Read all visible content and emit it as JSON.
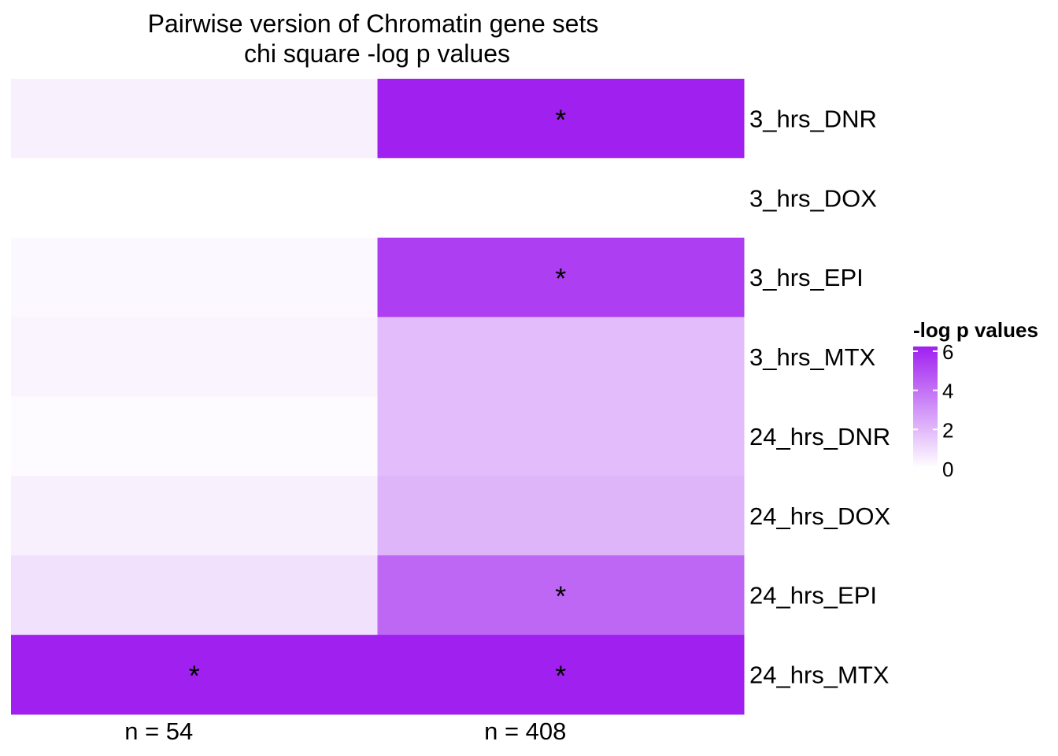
{
  "chart_data": {
    "type": "heatmap",
    "title": "Pairwise version of Chromatin gene sets",
    "subtitle": "chi square -log p values",
    "columns": [
      "n = 54",
      "n = 408"
    ],
    "rows": [
      "3_hrs_DNR",
      "3_hrs_DOX",
      "3_hrs_EPI",
      "3_hrs_MTX",
      "24_hrs_DNR",
      "24_hrs_DOX",
      "24_hrs_EPI",
      "24_hrs_MTX"
    ],
    "values": [
      [
        0.4,
        6.0
      ],
      [
        null,
        null
      ],
      [
        0.2,
        5.2
      ],
      [
        0.3,
        1.8
      ],
      [
        0.1,
        1.8
      ],
      [
        0.4,
        2.0
      ],
      [
        0.8,
        4.1
      ],
      [
        6.0,
        6.0
      ]
    ],
    "significant": [
      [
        false,
        true
      ],
      [
        false,
        false
      ],
      [
        false,
        true
      ],
      [
        false,
        false
      ],
      [
        false,
        false
      ],
      [
        false,
        false
      ],
      [
        false,
        true
      ],
      [
        true,
        true
      ]
    ],
    "significance_marker": "*",
    "legend": {
      "title": "-log p values",
      "ticks": [
        0,
        2,
        4,
        6
      ],
      "range": [
        0,
        6
      ],
      "position": "right",
      "low_color": "#FFFFFF",
      "high_color": "#A020F0"
    }
  }
}
